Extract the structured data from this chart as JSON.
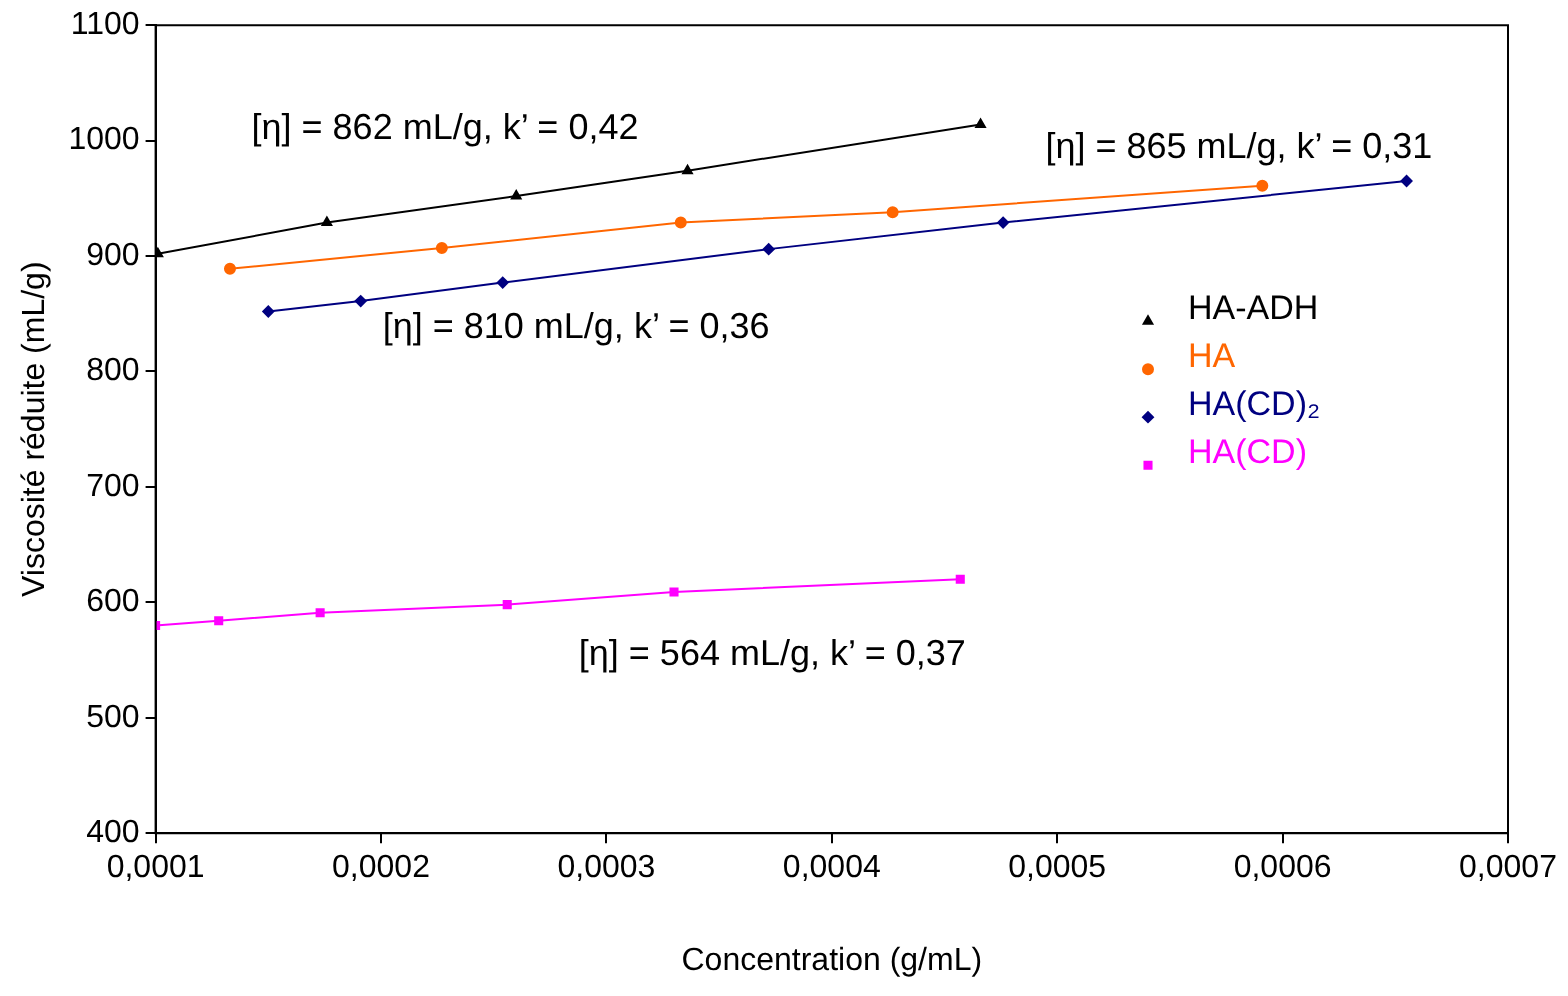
{
  "chart_data": {
    "type": "line",
    "xlabel": "Concentration (g/mL)",
    "ylabel": "Viscosité réduite (mL/g)",
    "xlim": [
      0.0001,
      0.0007
    ],
    "xticks": [
      {
        "value": 0.0001,
        "label": "0,0001"
      },
      {
        "value": 0.0002,
        "label": "0,0002"
      },
      {
        "value": 0.0003,
        "label": "0,0003"
      },
      {
        "value": 0.0004,
        "label": "0,0004"
      },
      {
        "value": 0.0005,
        "label": "0,0005"
      },
      {
        "value": 0.0006,
        "label": "0,0006"
      },
      {
        "value": 0.0007,
        "label": "0,0007"
      }
    ],
    "ylim": [
      400,
      1100
    ],
    "yticks": [
      400,
      500,
      600,
      700,
      800,
      900,
      1000,
      1100
    ],
    "grid": false,
    "legend": "right",
    "line_style": "solid",
    "series": [
      {
        "name": "HA-ADH",
        "color": "#000000",
        "marker": "triangle",
        "x": [
          0.000101,
          0.000176,
          0.00026,
          0.000336,
          0.000466
        ],
        "values": [
          902,
          929,
          952,
          974,
          1014
        ]
      },
      {
        "name": "HA",
        "color": "#ff6600",
        "marker": "circle",
        "x": [
          0.000133,
          0.000227,
          0.000333,
          0.000427,
          0.000591
        ],
        "values": [
          889,
          907,
          929,
          938,
          961
        ]
      },
      {
        "name": "HA(CD)₂",
        "color": "#000080",
        "marker": "diamond",
        "x": [
          0.00015,
          0.000191,
          0.000254,
          0.000372,
          0.000476,
          0.000655
        ],
        "values": [
          852,
          861,
          877,
          906,
          929,
          965
        ]
      },
      {
        "name": "HA(CD)",
        "color": "#ff00ff",
        "marker": "square",
        "x": [
          0.0001,
          0.000128,
          0.000173,
          0.000256,
          0.00033,
          0.000457
        ],
        "values": [
          580,
          584,
          591,
          598,
          609,
          620
        ]
      }
    ],
    "annotations": [
      "[η] = 862 mL/g, k’ = 0,42",
      "[η] = 865 mL/g, k’ = 0,31",
      "[η] = 810 mL/g, k’ = 0,36",
      "[η] = 564 mL/g, k’ = 0,37"
    ]
  }
}
